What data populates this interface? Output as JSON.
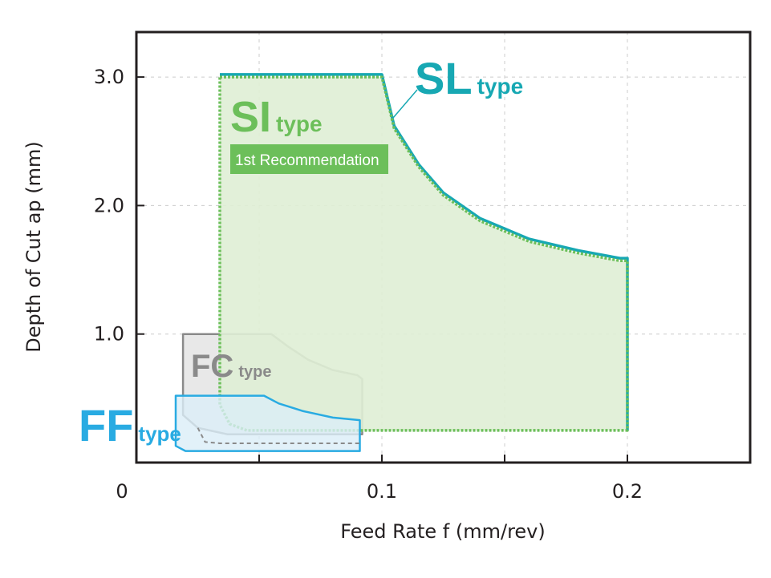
{
  "chart_data": {
    "type": "area",
    "xlabel": "Feed Rate  f (mm/rev)",
    "ylabel": "Depth of Cut ap (mm)",
    "xlim": [
      0,
      0.25
    ],
    "ylim": [
      0,
      3.35
    ],
    "x_ticks": [
      {
        "value": 0,
        "label": "0"
      },
      {
        "value": 0.1,
        "label": "0.1"
      },
      {
        "value": 0.2,
        "label": "0.2"
      }
    ],
    "x_grid": [
      0.05,
      0.1,
      0.15,
      0.2
    ],
    "y_ticks": [
      {
        "value": 1.0,
        "label": "1.0"
      },
      {
        "value": 2.0,
        "label": "2.0"
      },
      {
        "value": 3.0,
        "label": "3.0"
      }
    ],
    "grid": true,
    "regions": [
      {
        "name": "FC",
        "suffix": "type",
        "color": "#8a8a8a",
        "fill": "#e8e8e8",
        "boundary": [
          [
            0.019,
            0.37
          ],
          [
            0.019,
            1.0
          ],
          [
            0.055,
            1.0
          ],
          [
            0.062,
            0.9
          ],
          [
            0.07,
            0.8
          ],
          [
            0.08,
            0.72
          ],
          [
            0.09,
            0.68
          ],
          [
            0.092,
            0.65
          ],
          [
            0.092,
            0.22
          ],
          [
            0.037,
            0.22
          ],
          [
            0.025,
            0.27
          ]
        ]
      },
      {
        "name": "SI",
        "suffix": "type",
        "color": "#6cbf5a",
        "fill": "#dfeed5",
        "note": "1st Recommendation",
        "boundary": [
          [
            0.034,
            3.0
          ],
          [
            0.1,
            3.0
          ],
          [
            0.105,
            2.6
          ],
          [
            0.115,
            2.3
          ],
          [
            0.125,
            2.08
          ],
          [
            0.14,
            1.88
          ],
          [
            0.16,
            1.72
          ],
          [
            0.18,
            1.63
          ],
          [
            0.197,
            1.57
          ],
          [
            0.2,
            1.57
          ],
          [
            0.2,
            0.25
          ],
          [
            0.045,
            0.25
          ],
          [
            0.038,
            0.3
          ],
          [
            0.034,
            0.45
          ]
        ]
      },
      {
        "name": "SL",
        "suffix": "type",
        "color": "#17a8b3",
        "boundary": [
          [
            0.034,
            3.02
          ],
          [
            0.1,
            3.02
          ],
          [
            0.105,
            2.62
          ],
          [
            0.115,
            2.32
          ],
          [
            0.125,
            2.1
          ],
          [
            0.14,
            1.9
          ],
          [
            0.16,
            1.74
          ],
          [
            0.18,
            1.65
          ],
          [
            0.197,
            1.59
          ],
          [
            0.2,
            1.59
          ],
          [
            0.2,
            0.25
          ]
        ]
      },
      {
        "name": "FF",
        "suffix": "type",
        "color": "#29abe2",
        "fill": "#dbeef8",
        "boundary": [
          [
            0.016,
            0.52
          ],
          [
            0.052,
            0.52
          ],
          [
            0.058,
            0.46
          ],
          [
            0.068,
            0.4
          ],
          [
            0.08,
            0.35
          ],
          [
            0.091,
            0.33
          ],
          [
            0.091,
            0.09
          ],
          [
            0.02,
            0.09
          ],
          [
            0.016,
            0.13
          ]
        ]
      }
    ]
  }
}
